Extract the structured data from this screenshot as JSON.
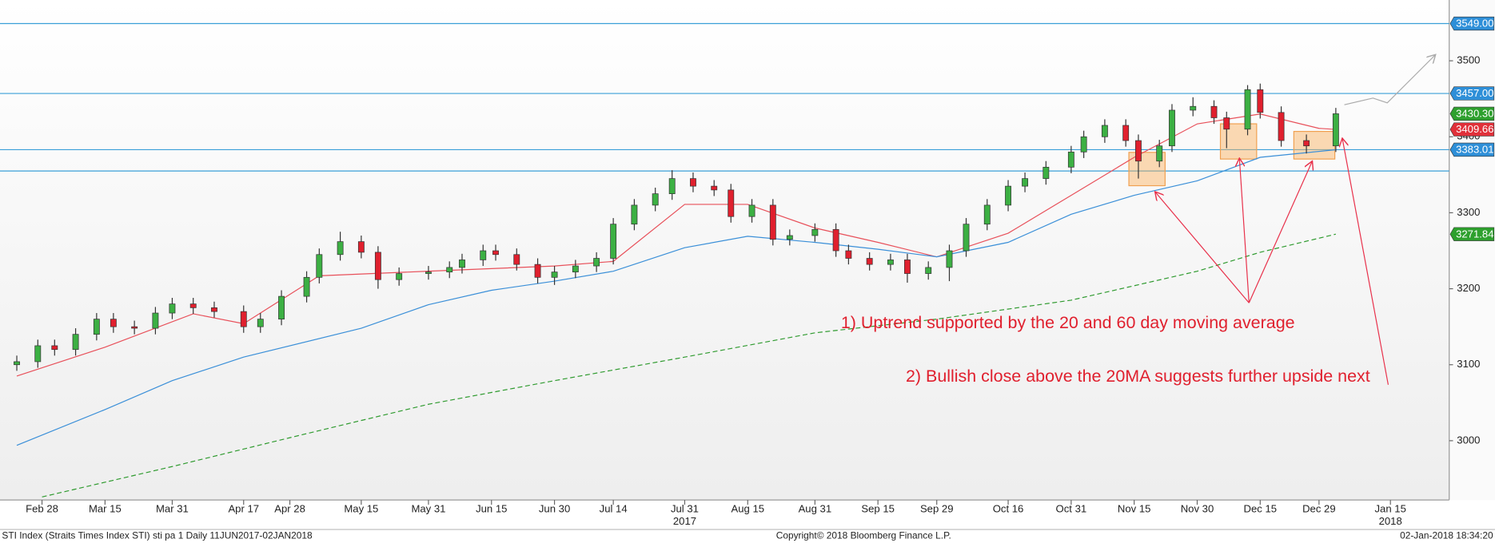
{
  "chart_data": {
    "type": "candlestick",
    "x": [
      "2017-02-22",
      "2017-02-27",
      "2017-03-03",
      "2017-03-08",
      "2017-03-13",
      "2017-03-17",
      "2017-03-22",
      "2017-03-27",
      "2017-03-31",
      "2017-04-05",
      "2017-04-10",
      "2017-04-17",
      "2017-04-21",
      "2017-04-26",
      "2017-05-02",
      "2017-05-05",
      "2017-05-10",
      "2017-05-15",
      "2017-05-19",
      "2017-05-24",
      "2017-05-31",
      "2017-06-05",
      "2017-06-08",
      "2017-06-13",
      "2017-06-16",
      "2017-06-21",
      "2017-06-26",
      "2017-06-30",
      "2017-07-05",
      "2017-07-10",
      "2017-07-14",
      "2017-07-19",
      "2017-07-24",
      "2017-07-28",
      "2017-08-02",
      "2017-08-07",
      "2017-08-11",
      "2017-08-16",
      "2017-08-21",
      "2017-08-25",
      "2017-08-31",
      "2017-09-05",
      "2017-09-08",
      "2017-09-13",
      "2017-09-18",
      "2017-09-22",
      "2017-09-27",
      "2017-10-02",
      "2017-10-06",
      "2017-10-11",
      "2017-10-16",
      "2017-10-20",
      "2017-10-25",
      "2017-10-31",
      "2017-11-03",
      "2017-11-08",
      "2017-11-13",
      "2017-11-16",
      "2017-11-21",
      "2017-11-24",
      "2017-11-29",
      "2017-12-04",
      "2017-12-07",
      "2017-12-12",
      "2017-12-15",
      "2017-12-20",
      "2017-12-26",
      "2018-01-02"
    ],
    "open": [
      3100,
      3104,
      3125,
      3120,
      3140,
      3160,
      3150,
      3148,
      3168,
      3180,
      3175,
      3170,
      3150,
      3160,
      3190,
      3215,
      3245,
      3262,
      3248,
      3212,
      3220,
      3222,
      3228,
      3238,
      3250,
      3245,
      3232,
      3215,
      3222,
      3230,
      3240,
      3285,
      3310,
      3325,
      3345,
      3335,
      3330,
      3295,
      3310,
      3265,
      3270,
      3278,
      3250,
      3240,
      3232,
      3238,
      3220,
      3228,
      3250,
      3285,
      3310,
      3335,
      3345,
      3360,
      3380,
      3400,
      3415,
      3395,
      3368,
      3388,
      3435,
      3440,
      3425,
      3410,
      3462,
      3432,
      3395,
      3388
    ],
    "high": [
      3112,
      3133,
      3133,
      3148,
      3168,
      3168,
      3158,
      3176,
      3188,
      3188,
      3183,
      3178,
      3168,
      3198,
      3223,
      3253,
      3275,
      3270,
      3256,
      3228,
      3230,
      3236,
      3246,
      3258,
      3258,
      3253,
      3240,
      3230,
      3238,
      3248,
      3293,
      3318,
      3333,
      3356,
      3353,
      3343,
      3338,
      3318,
      3318,
      3278,
      3286,
      3286,
      3258,
      3248,
      3246,
      3246,
      3236,
      3258,
      3293,
      3318,
      3343,
      3353,
      3368,
      3388,
      3408,
      3423,
      3423,
      3403,
      3396,
      3443,
      3452,
      3448,
      3433,
      3468,
      3470,
      3440,
      3403,
      3438
    ],
    "low": [
      3092,
      3096,
      3112,
      3112,
      3132,
      3142,
      3140,
      3140,
      3160,
      3167,
      3162,
      3142,
      3142,
      3152,
      3182,
      3207,
      3237,
      3240,
      3200,
      3204,
      3212,
      3214,
      3220,
      3230,
      3237,
      3224,
      3207,
      3205,
      3214,
      3222,
      3232,
      3277,
      3302,
      3317,
      3327,
      3322,
      3287,
      3287,
      3257,
      3257,
      3262,
      3242,
      3232,
      3224,
      3224,
      3208,
      3212,
      3210,
      3242,
      3277,
      3302,
      3327,
      3337,
      3352,
      3372,
      3392,
      3387,
      3345,
      3360,
      3380,
      3427,
      3417,
      3385,
      3402,
      3424,
      3387,
      3378,
      3380
    ],
    "close": [
      3104,
      3125,
      3120,
      3140,
      3160,
      3150,
      3148,
      3168,
      3180,
      3175,
      3170,
      3150,
      3160,
      3190,
      3215,
      3245,
      3262,
      3248,
      3212,
      3220,
      3222,
      3228,
      3238,
      3250,
      3245,
      3232,
      3215,
      3222,
      3230,
      3240,
      3285,
      3310,
      3325,
      3345,
      3335,
      3330,
      3295,
      3310,
      3265,
      3270,
      3278,
      3250,
      3240,
      3232,
      3238,
      3220,
      3228,
      3250,
      3285,
      3310,
      3335,
      3345,
      3360,
      3380,
      3400,
      3415,
      3395,
      3368,
      3388,
      3435,
      3440,
      3425,
      3410,
      3462,
      3432,
      3395,
      3388,
      3430.3
    ],
    "up_color": "#3cb043",
    "down_color": "#e0202e",
    "moving_averages": [
      {
        "color": "#e8505a",
        "dashed": false,
        "x": [
          "2017-02-22",
          "2017-03-15",
          "2017-04-05",
          "2017-04-17",
          "2017-05-05",
          "2017-05-31",
          "2017-06-30",
          "2017-07-14",
          "2017-07-31",
          "2017-08-15",
          "2017-08-31",
          "2017-09-15",
          "2017-09-29",
          "2017-10-16",
          "2017-10-31",
          "2017-11-15",
          "2017-11-30",
          "2017-12-15",
          "2017-12-29",
          "2018-01-02"
        ],
        "values": [
          3085,
          3123,
          3167,
          3154,
          3217,
          3223,
          3230,
          3236,
          3311,
          3311,
          3280,
          3261,
          3242,
          3273,
          3323,
          3373,
          3417,
          3430,
          3411,
          3409.66
        ]
      },
      {
        "color": "#3a8fd8",
        "dashed": false,
        "x": [
          "2017-02-22",
          "2017-03-15",
          "2017-03-31",
          "2017-04-17",
          "2017-05-15",
          "2017-05-31",
          "2017-06-15",
          "2017-06-30",
          "2017-07-14",
          "2017-07-31",
          "2017-08-15",
          "2017-08-31",
          "2017-09-15",
          "2017-09-29",
          "2017-10-16",
          "2017-10-31",
          "2017-11-15",
          "2017-11-30",
          "2017-12-15",
          "2018-01-02"
        ],
        "values": [
          2994,
          3041,
          3079,
          3110,
          3148,
          3179,
          3198,
          3210,
          3223,
          3254,
          3269,
          3261,
          3252,
          3242,
          3261,
          3298,
          3323,
          3342,
          3373,
          3383.01
        ]
      },
      {
        "color": "#2e9a2e",
        "dashed": true,
        "x": [
          "2017-02-28",
          "2017-03-31",
          "2017-04-28",
          "2017-05-31",
          "2017-06-30",
          "2017-07-31",
          "2017-08-31",
          "2017-09-29",
          "2017-10-31",
          "2017-11-30",
          "2017-12-15",
          "2018-01-02"
        ],
        "values": [
          2926,
          2966,
          3004,
          3048,
          3079,
          3110,
          3142,
          3160,
          3185,
          3223,
          3248,
          3271.84
        ]
      }
    ],
    "levels": [
      3549,
      3457,
      3383.01,
      3355
    ],
    "level_color": "#3aa0d8",
    "price_tags": [
      {
        "value": 3549,
        "label": "3549.00",
        "color": "#2e8fd8"
      },
      {
        "value": 3457,
        "label": "3457.00",
        "color": "#2e8fd8"
      },
      {
        "value": 3430.3,
        "label": "3430.30",
        "color": "#2ea02e"
      },
      {
        "value": 3409.66,
        "label": "3409.66",
        "color": "#e0303a"
      },
      {
        "value": 3383.01,
        "label": "3383.01",
        "color": "#2e8fd8"
      },
      {
        "value": 3271.84,
        "label": "3271.84",
        "color": "#2ea02e"
      }
    ],
    "ylim": [
      2922,
      3580
    ],
    "yticks": [
      3000,
      3100,
      3200,
      3300,
      3400,
      3500
    ],
    "xlim": [
      "2017-02-18",
      "2018-01-29"
    ],
    "xticks": [
      {
        "value": "2017-02-28",
        "label": "Feb 28"
      },
      {
        "value": "2017-03-15",
        "label": "Mar 15"
      },
      {
        "value": "2017-03-31",
        "label": "Mar 31"
      },
      {
        "value": "2017-04-17",
        "label": "Apr 17"
      },
      {
        "value": "2017-04-28",
        "label": "Apr 28"
      },
      {
        "value": "2017-05-15",
        "label": "May 15"
      },
      {
        "value": "2017-05-31",
        "label": "May 31"
      },
      {
        "value": "2017-06-15",
        "label": "Jun 15"
      },
      {
        "value": "2017-06-30",
        "label": "Jun 30"
      },
      {
        "value": "2017-07-14",
        "label": "Jul 14"
      },
      {
        "value": "2017-07-31",
        "label": "Jul 31"
      },
      {
        "value": "2017-08-15",
        "label": "Aug 15"
      },
      {
        "value": "2017-08-31",
        "label": "Aug 31"
      },
      {
        "value": "2017-09-15",
        "label": "Sep 15"
      },
      {
        "value": "2017-09-29",
        "label": "Sep 29"
      },
      {
        "value": "2017-10-16",
        "label": "Oct 16"
      },
      {
        "value": "2017-10-31",
        "label": "Oct 31"
      },
      {
        "value": "2017-11-15",
        "label": "Nov 15"
      },
      {
        "value": "2017-11-30",
        "label": "Nov 30"
      },
      {
        "value": "2017-12-15",
        "label": "Dec 15"
      },
      {
        "value": "2017-12-29",
        "label": "Dec 29"
      },
      {
        "value": "2018-01-15",
        "label": "Jan 15"
      }
    ],
    "year_labels": [
      {
        "value": "2017-07-31",
        "label": "2017"
      },
      {
        "value": "2018-01-15",
        "label": "2018"
      }
    ],
    "annotations": [
      "1) Uptrend supported by the 20 and 60 day moving average",
      "2) Bullish close above the 20MA suggests further upside next"
    ],
    "source": "STI Index (Straits Times Index STI) sti pa 1  Daily 11JUN2017-02JAN2018",
    "copyright": "Copyright© 2018 Bloomberg Finance L.P.",
    "timestamp": "02-Jan-2018 18:34:20"
  }
}
